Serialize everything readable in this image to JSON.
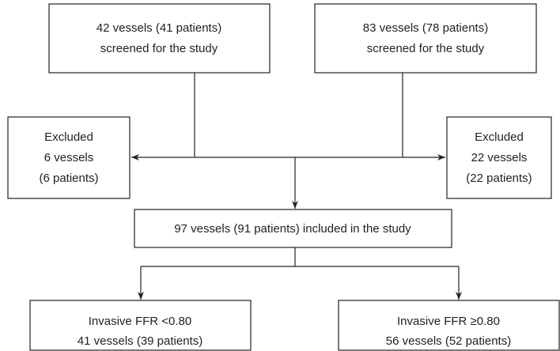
{
  "nodes": [
    {
      "lines": [
        "42 vessels (41 patients)",
        "screened for the study"
      ]
    },
    {
      "lines": [
        "83 vessels (78 patients)",
        "screened for the study"
      ]
    },
    {
      "lines": [
        "Excluded",
        "6 vessels",
        "(6 patients)"
      ]
    },
    {
      "lines": [
        "Excluded",
        "22 vessels",
        "(22 patients)"
      ]
    },
    {
      "lines": [
        "97 vessels (91 patients) included in the study"
      ]
    },
    {
      "lines": [
        "Invasive FFR <0.80",
        "41 vessels (39 patients)"
      ]
    },
    {
      "lines": [
        "Invasive FFR ≥0.80",
        "56 vessels (52 patients)"
      ]
    }
  ]
}
